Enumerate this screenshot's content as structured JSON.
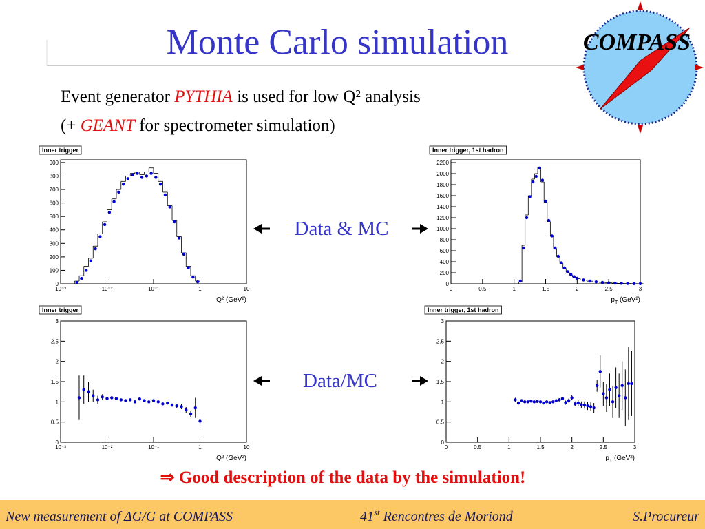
{
  "title": "Monte Carlo simulation",
  "logo": "COMPASS",
  "intro": {
    "line1": [
      "Event generator ",
      "PYTHIA",
      " is used for low Q² analysis"
    ],
    "line2": [
      "(+ ",
      "GEANT",
      " for spectrometer simulation)"
    ]
  },
  "labels": {
    "q2_top": "Q²",
    "q2_bottom": "Q²",
    "pt_top": {
      "main": "p",
      "sub": "T"
    },
    "pt_bottom": {
      "main": "p",
      "sub": "T"
    },
    "data_mc_top": "Data & MC",
    "data_mc_bottom": "Data/MC"
  },
  "conclusion": "⇒ Good description of the data by the simulation!",
  "footer": {
    "left": "New measurement of ΔG/G at COMPASS",
    "center": {
      "main": "41",
      "sup": "st",
      "rest": " Rencontres de Moriond"
    },
    "right": "S.Procureur"
  },
  "chart_data": [
    {
      "type": "scatter",
      "title": "Inner trigger",
      "x_label": "Q² (GeV²)",
      "xscale": "log",
      "xlim": [
        0.001,
        10
      ],
      "xticks": [
        {
          "value": 0.001,
          "label": "10⁻³"
        },
        {
          "value": 0.01,
          "label": "10⁻²"
        },
        {
          "value": 0.1,
          "label": "10⁻¹"
        },
        1,
        10
      ],
      "ylim": [
        0,
        920
      ],
      "yticks": [
        0,
        100,
        200,
        300,
        400,
        500,
        600,
        700,
        800,
        900
      ],
      "x": [
        0.00224,
        0.00282,
        0.00355,
        0.00447,
        0.00562,
        0.00708,
        0.00891,
        0.0112,
        0.0141,
        0.0178,
        0.0224,
        0.0282,
        0.0355,
        0.0447,
        0.0562,
        0.0708,
        0.0891,
        0.112,
        0.141,
        0.178,
        0.224,
        0.282,
        0.355,
        0.447,
        0.562,
        0.708,
        0.891
      ],
      "series": [
        {
          "style": "step",
          "color": "#000000",
          "values": [
            20,
            60,
            130,
            190,
            280,
            370,
            460,
            550,
            630,
            700,
            760,
            800,
            820,
            830,
            810,
            830,
            860,
            820,
            760,
            680,
            580,
            470,
            350,
            230,
            130,
            60,
            20
          ]
        },
        {
          "style": "points",
          "color": "#0000cc",
          "values": [
            10,
            40,
            100,
            170,
            260,
            350,
            440,
            530,
            610,
            680,
            740,
            780,
            810,
            820,
            790,
            800,
            820,
            790,
            740,
            660,
            570,
            460,
            340,
            220,
            120,
            50,
            15
          ]
        }
      ]
    },
    {
      "type": "scatter",
      "title": "Inner trigger, 1st hadron",
      "x_label": {
        "main": "p",
        "sub": "T",
        "rest": " (GeV²)"
      },
      "xscale": "linear",
      "xlim": [
        0,
        3
      ],
      "xticks": [
        0,
        0.5,
        1,
        1.5,
        2,
        2.5,
        3
      ],
      "ylim": [
        0,
        2250
      ],
      "yticks": [
        0,
        200,
        400,
        600,
        800,
        1000,
        1200,
        1400,
        1600,
        1800,
        2000,
        2200
      ],
      "x": [
        1.1,
        1.15,
        1.2,
        1.25,
        1.3,
        1.35,
        1.4,
        1.45,
        1.5,
        1.55,
        1.6,
        1.65,
        1.7,
        1.75,
        1.8,
        1.85,
        1.9,
        1.95,
        2.0,
        2.1,
        2.2,
        2.3,
        2.4,
        2.5,
        2.6,
        2.7,
        2.8,
        2.9,
        3.0
      ],
      "series": [
        {
          "style": "step",
          "color": "#000000",
          "values": [
            30,
            700,
            1250,
            1600,
            1900,
            2000,
            2120,
            1850,
            1480,
            1130,
            860,
            640,
            490,
            370,
            280,
            210,
            160,
            125,
            95,
            68,
            48,
            33,
            24,
            17,
            11,
            7,
            5,
            3,
            2
          ]
        },
        {
          "style": "points",
          "color": "#0000cc",
          "values": [
            50,
            650,
            1200,
            1580,
            1850,
            1950,
            2100,
            1880,
            1500,
            1150,
            870,
            650,
            500,
            380,
            290,
            220,
            170,
            130,
            100,
            70,
            50,
            35,
            25,
            18,
            12,
            8,
            5,
            3,
            2
          ]
        }
      ]
    },
    {
      "type": "scatter",
      "title": "Inner trigger",
      "x_label": "Q² (GeV²)",
      "xscale": "log",
      "xlim": [
        0.001,
        10
      ],
      "xticks": [
        {
          "value": 0.001,
          "label": "10⁻³"
        },
        {
          "value": 0.01,
          "label": "10⁻²"
        },
        {
          "value": 0.1,
          "label": "10⁻¹"
        },
        1,
        10
      ],
      "ylim": [
        0,
        3
      ],
      "yticks": [
        0,
        0.5,
        1,
        1.5,
        2,
        2.5,
        3
      ],
      "x": [
        0.00251,
        0.00316,
        0.00398,
        0.00501,
        0.00631,
        0.00794,
        0.01,
        0.0126,
        0.0158,
        0.02,
        0.0251,
        0.0316,
        0.0398,
        0.0501,
        0.0631,
        0.0794,
        0.1,
        0.126,
        0.158,
        0.2,
        0.251,
        0.316,
        0.398,
        0.501,
        0.631,
        0.794,
        1
      ],
      "series": [
        {
          "style": "points",
          "color": "#0000cc",
          "values": [
            1.1,
            1.3,
            1.25,
            1.15,
            1.05,
            1.12,
            1.08,
            1.1,
            1.08,
            1.05,
            1.03,
            1.05,
            1.0,
            1.07,
            1.03,
            1.0,
            1.03,
            1.0,
            0.95,
            0.97,
            0.92,
            0.9,
            0.88,
            0.8,
            0.7,
            0.85,
            0.52
          ],
          "errors": [
            0.55,
            0.35,
            0.25,
            0.15,
            0.1,
            0.07,
            0.05,
            0.04,
            0.03,
            0.03,
            0.03,
            0.03,
            0.03,
            0.03,
            0.03,
            0.03,
            0.03,
            0.03,
            0.03,
            0.03,
            0.04,
            0.05,
            0.06,
            0.07,
            0.08,
            0.25,
            0.15
          ]
        }
      ]
    },
    {
      "type": "scatter",
      "title": "Inner trigger, 1st hadron",
      "x_label": {
        "main": "p",
        "sub": "T",
        "rest": " (GeV²)"
      },
      "xscale": "linear",
      "xlim": [
        0,
        3
      ],
      "xticks": [
        0,
        0.5,
        1,
        1.5,
        2,
        2.5,
        3
      ],
      "ylim": [
        0,
        3
      ],
      "yticks": [
        0,
        0.5,
        1,
        1.5,
        2,
        2.5,
        3
      ],
      "x": [
        1.1,
        1.15,
        1.2,
        1.25,
        1.3,
        1.35,
        1.4,
        1.45,
        1.5,
        1.55,
        1.6,
        1.65,
        1.7,
        1.75,
        1.8,
        1.85,
        1.9,
        1.95,
        2.0,
        2.05,
        2.1,
        2.15,
        2.2,
        2.25,
        2.3,
        2.35,
        2.4,
        2.45,
        2.5,
        2.55,
        2.6,
        2.65,
        2.7,
        2.75,
        2.8,
        2.85,
        2.9,
        2.95
      ],
      "series": [
        {
          "style": "points",
          "color": "#0000cc",
          "values": [
            1.05,
            0.97,
            1.03,
            1.0,
            1.0,
            1.02,
            1.0,
            1.01,
            1.0,
            0.97,
            1.0,
            0.98,
            1.0,
            1.03,
            1.05,
            1.08,
            0.98,
            1.03,
            1.1,
            0.95,
            0.97,
            0.93,
            0.92,
            0.9,
            0.88,
            0.85,
            1.4,
            1.75,
            1.2,
            1.1,
            1.3,
            1.0,
            1.35,
            1.15,
            1.4,
            1.1,
            1.45,
            1.45
          ],
          "errors": [
            0.05,
            0.04,
            0.03,
            0.03,
            0.02,
            0.02,
            0.02,
            0.02,
            0.02,
            0.02,
            0.02,
            0.03,
            0.03,
            0.03,
            0.04,
            0.04,
            0.05,
            0.05,
            0.06,
            0.06,
            0.07,
            0.08,
            0.09,
            0.1,
            0.11,
            0.12,
            0.15,
            0.4,
            0.3,
            0.35,
            0.4,
            0.4,
            0.5,
            0.55,
            0.6,
            0.7,
            0.9,
            0.8
          ]
        }
      ]
    }
  ]
}
